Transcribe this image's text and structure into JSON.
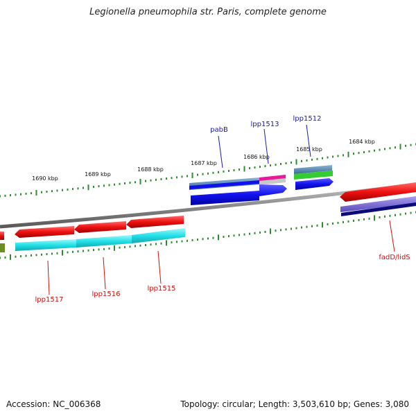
{
  "title": "Legionella pneumophila str. Paris, complete genome",
  "footer": {
    "accession": "Accession: NC_006368",
    "summary": "Topology: circular; Length: 3,503,610 bp; Genes: 3,080"
  },
  "scale_labels": [
    "1690 kbp",
    "1689 kbp",
    "1688 kbp",
    "1687 kbp",
    "1686 kbp",
    "1685 kbp",
    "1684 kbp"
  ],
  "gene_labels": {
    "top": [
      "pabB",
      "lpp1513",
      "lpp1512"
    ],
    "bottom": [
      "lpp1517",
      "lpp1516",
      "lpp1515",
      "fadD/lidS"
    ]
  },
  "colors": {
    "forward_label": "#1a1aaa",
    "reverse_label": "#cc1111",
    "tick": "#2e8b2e",
    "backbone": "#808080",
    "red": "#ee1111",
    "blue": "#1111ee",
    "steel": "#4682b4",
    "cyan": "#22e0e8",
    "magenta": "#e8199a",
    "green": "#33cc33",
    "olive": "#6b8e23",
    "purple": "#6a5acd",
    "navy": "#0a0a7a"
  }
}
